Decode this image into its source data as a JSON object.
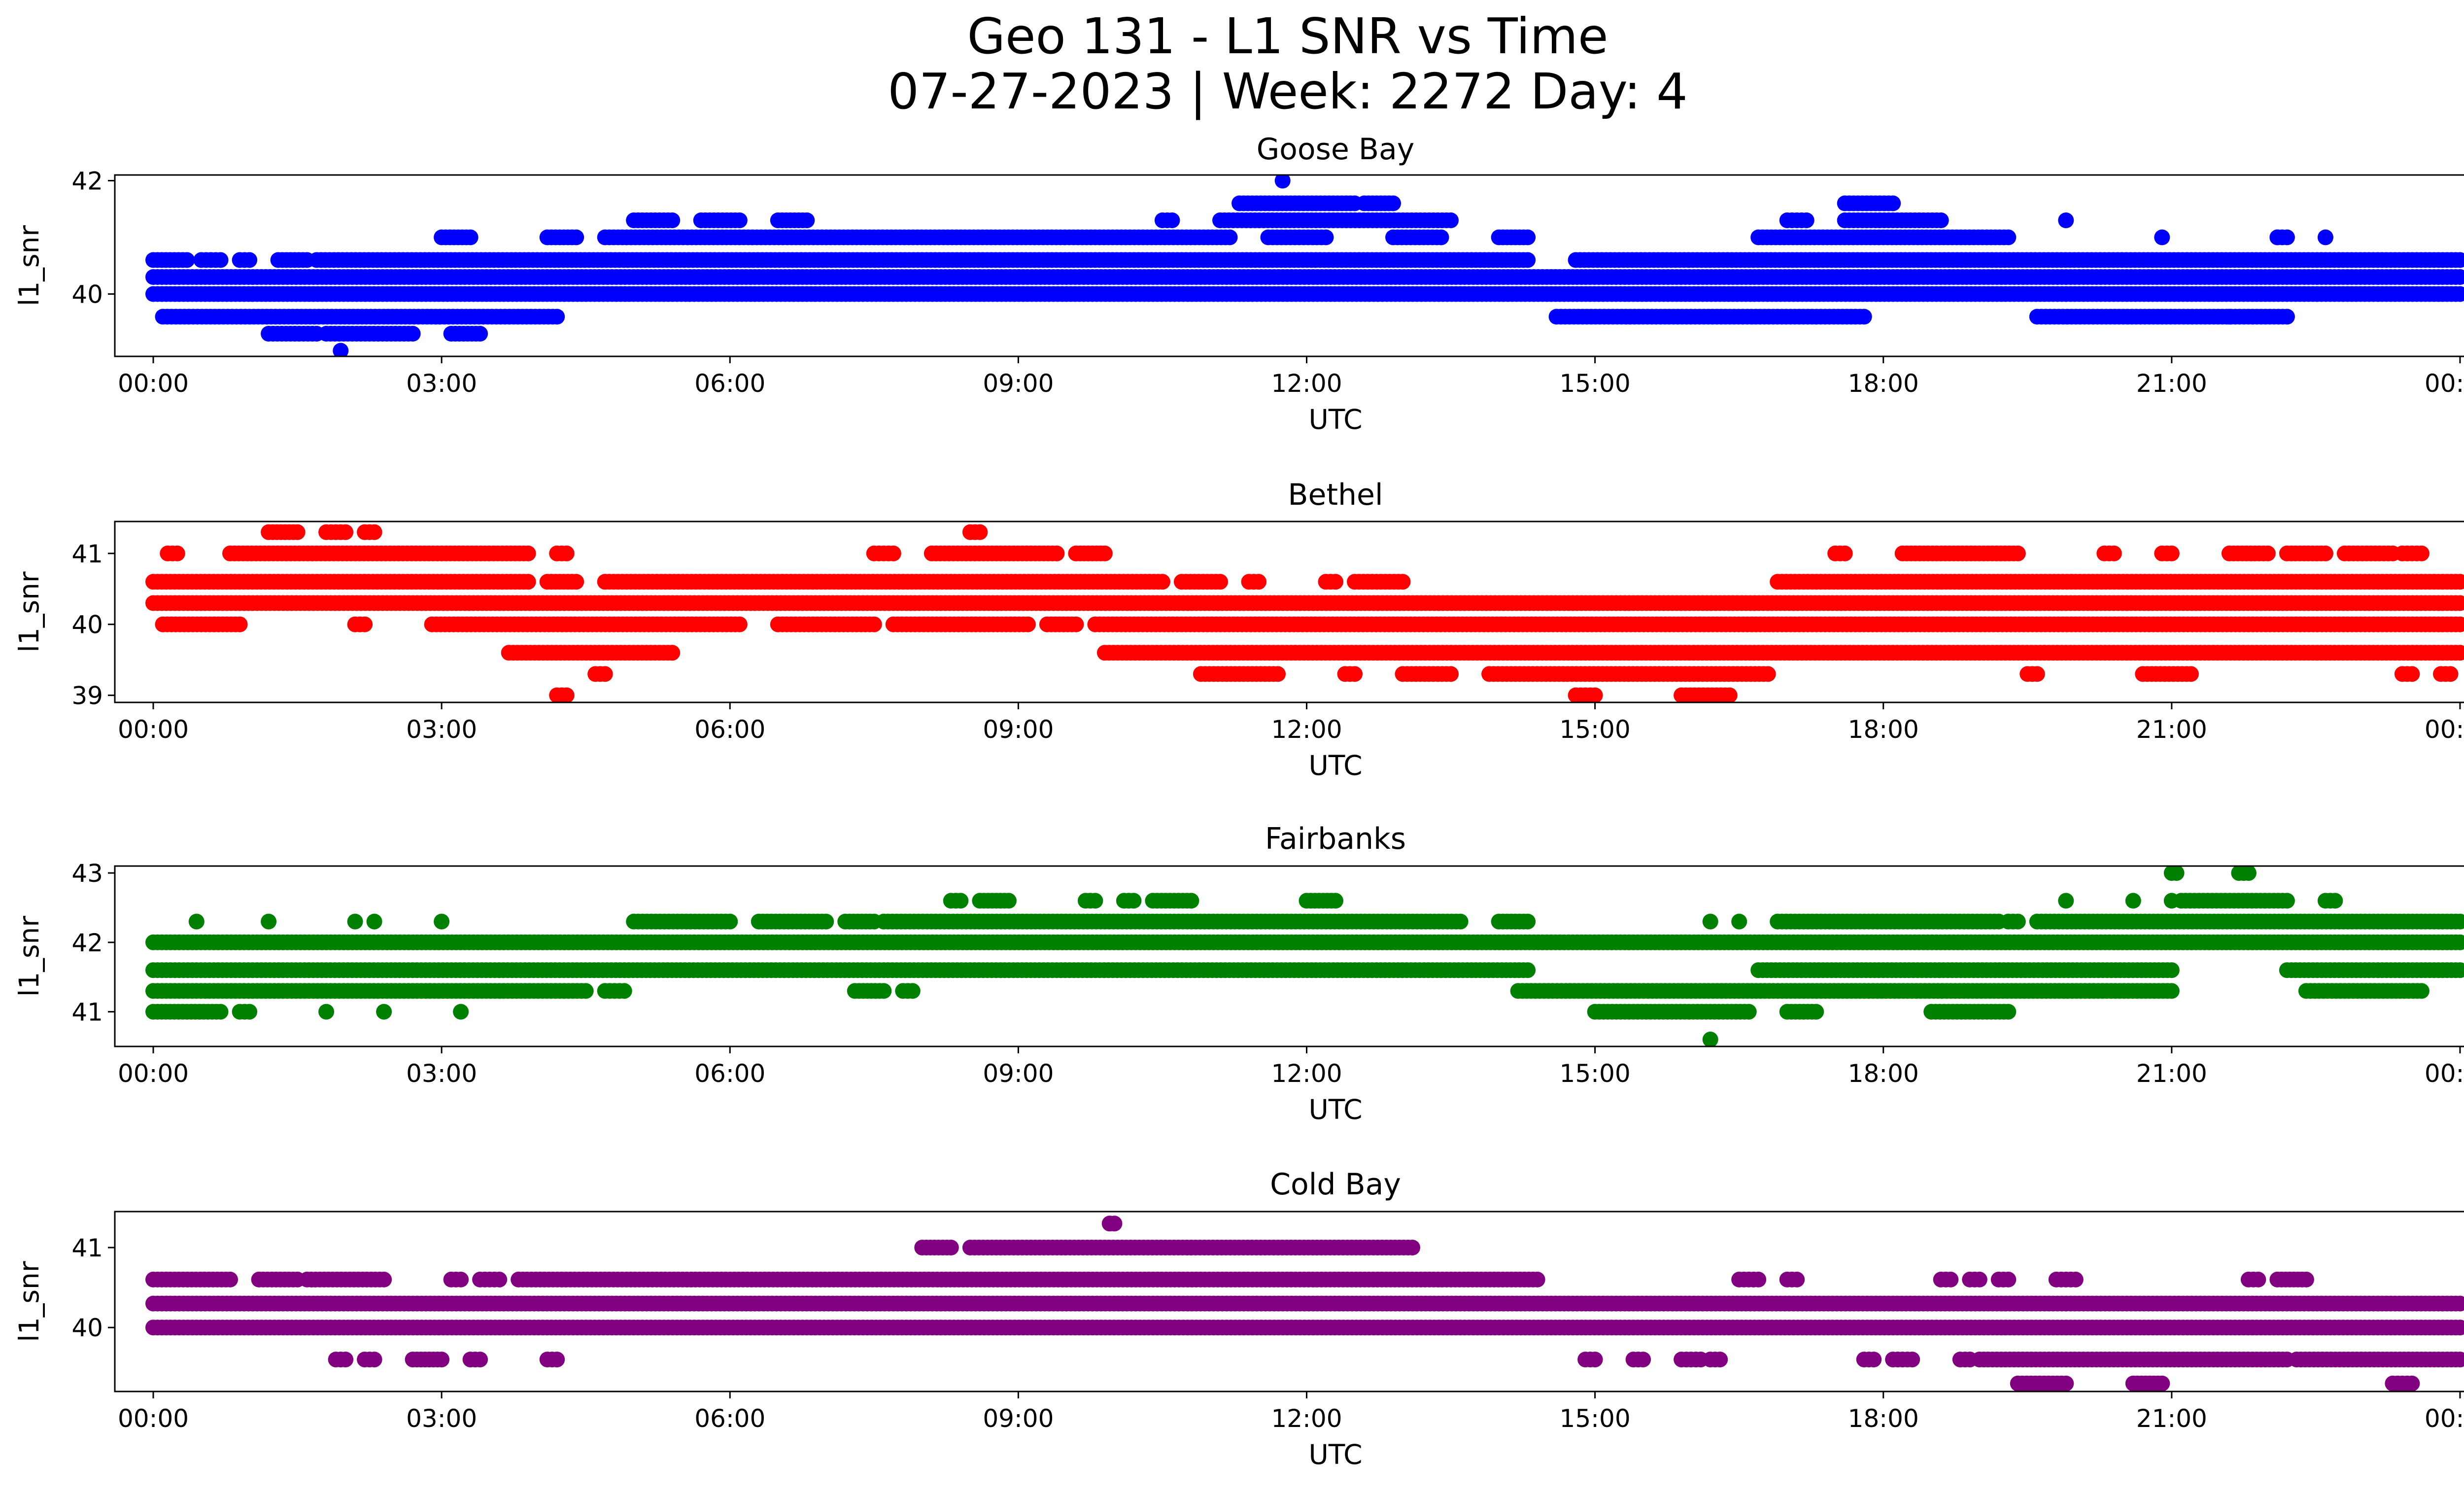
{
  "figure": {
    "title_line1": "Geo 131 - L1 SNR vs Time",
    "title_line2": "07-27-2023 | Week: 2272 Day: 4"
  },
  "chart_data": [
    {
      "type": "scatter",
      "title": "Goose Bay",
      "xlabel": "UTC",
      "ylabel": "l1_snr",
      "color": "#0000ff",
      "x_unit": "hours UTC",
      "xlim": [
        -0.4,
        25.0
      ],
      "ylim": [
        38.9,
        42.1
      ],
      "xticks": [
        "00:00",
        "03:00",
        "06:00",
        "09:00",
        "12:00",
        "15:00",
        "18:00",
        "21:00",
        "00:00"
      ],
      "yticks": [
        40,
        42
      ],
      "levels": [
        {
          "y": 40.0,
          "segments": [
            [
              0.0,
              24.0
            ]
          ]
        },
        {
          "y": 40.3,
          "segments": [
            [
              0.0,
              24.0
            ]
          ]
        },
        {
          "y": 39.6,
          "segments": [
            [
              0.1,
              4.2
            ],
            [
              14.6,
              17.8
            ],
            [
              19.6,
              22.2
            ]
          ]
        },
        {
          "y": 40.6,
          "segments": [
            [
              0.0,
              0.35
            ],
            [
              0.5,
              0.7
            ],
            [
              0.9,
              1.0
            ],
            [
              1.3,
              1.6
            ],
            [
              1.7,
              14.3
            ],
            [
              14.8,
              24.0
            ]
          ]
        },
        {
          "y": 41.0,
          "segments": [
            [
              3.0,
              3.3
            ],
            [
              4.1,
              4.4
            ],
            [
              4.7,
              11.2
            ],
            [
              11.6,
              12.2
            ],
            [
              12.9,
              13.4
            ],
            [
              14.0,
              14.3
            ],
            [
              16.7,
              19.3
            ],
            [
              22.1,
              22.2
            ]
          ]
        },
        {
          "y": 41.3,
          "segments": [
            [
              5.0,
              5.4
            ],
            [
              5.7,
              6.1
            ],
            [
              6.5,
              6.8
            ],
            [
              10.5,
              10.6
            ],
            [
              11.1,
              13.5
            ],
            [
              17.0,
              17.2
            ],
            [
              17.6,
              18.6
            ]
          ]
        },
        {
          "y": 41.6,
          "segments": [
            [
              11.3,
              12.5
            ],
            [
              12.6,
              12.9
            ],
            [
              17.6,
              18.1
            ]
          ]
        },
        {
          "y": 39.3,
          "segments": [
            [
              1.2,
              1.7
            ],
            [
              1.8,
              2.7
            ],
            [
              3.1,
              3.4
            ]
          ]
        }
      ],
      "points": [
        [
          11.75,
          42.0
        ],
        [
          1.95,
          39.0
        ],
        [
          19.9,
          41.3
        ],
        [
          20.9,
          41.0
        ],
        [
          22.1,
          41.0
        ],
        [
          21.6,
          39.6
        ],
        [
          22.6,
          41.0
        ]
      ]
    },
    {
      "type": "scatter",
      "title": "Bethel",
      "xlabel": "UTC",
      "ylabel": "l1_snr",
      "color": "#ff0000",
      "x_unit": "hours UTC",
      "xlim": [
        -0.4,
        25.0
      ],
      "ylim": [
        38.9,
        41.45
      ],
      "xticks": [
        "00:00",
        "03:00",
        "06:00",
        "09:00",
        "12:00",
        "15:00",
        "18:00",
        "21:00",
        "00:00"
      ],
      "yticks": [
        39,
        40,
        41
      ],
      "levels": [
        {
          "y": 40.3,
          "segments": [
            [
              0.0,
              24.0
            ]
          ]
        },
        {
          "y": 40.6,
          "segments": [
            [
              0.0,
              3.9
            ],
            [
              4.1,
              4.4
            ],
            [
              4.7,
              10.5
            ],
            [
              10.7,
              11.1
            ],
            [
              11.4,
              11.5
            ],
            [
              12.2,
              12.3
            ],
            [
              12.5,
              13.0
            ],
            [
              16.9,
              24.0
            ]
          ]
        },
        {
          "y": 40.0,
          "segments": [
            [
              0.1,
              0.9
            ],
            [
              2.1,
              2.2
            ],
            [
              2.9,
              6.1
            ],
            [
              6.5,
              7.5
            ],
            [
              7.7,
              9.1
            ],
            [
              9.3,
              9.6
            ],
            [
              9.8,
              24.0
            ]
          ]
        },
        {
          "y": 41.0,
          "segments": [
            [
              0.15,
              0.25
            ],
            [
              0.8,
              3.9
            ],
            [
              4.2,
              4.3
            ],
            [
              7.5,
              7.7
            ],
            [
              8.1,
              9.4
            ],
            [
              9.6,
              9.9
            ],
            [
              17.5,
              17.6
            ],
            [
              18.2,
              19.4
            ],
            [
              20.3,
              20.4
            ],
            [
              20.9,
              21.0
            ],
            [
              21.6,
              22.0
            ],
            [
              22.2,
              22.6
            ],
            [
              22.8,
              23.3
            ],
            [
              23.4,
              23.6
            ]
          ]
        },
        {
          "y": 41.3,
          "segments": [
            [
              1.2,
              1.5
            ],
            [
              1.8,
              2.0
            ],
            [
              2.2,
              2.3
            ],
            [
              8.5,
              8.6
            ]
          ]
        },
        {
          "y": 39.6,
          "segments": [
            [
              3.7,
              5.4
            ],
            [
              9.9,
              24.0
            ]
          ]
        },
        {
          "y": 39.3,
          "segments": [
            [
              4.6,
              4.7
            ],
            [
              10.9,
              11.7
            ],
            [
              12.4,
              12.5
            ],
            [
              13.0,
              13.5
            ],
            [
              13.9,
              16.8
            ],
            [
              19.5,
              19.6
            ],
            [
              20.7,
              21.2
            ],
            [
              23.4,
              23.5
            ],
            [
              23.8,
              23.9
            ]
          ]
        },
        {
          "y": 39.0,
          "segments": [
            [
              4.2,
              4.3
            ],
            [
              14.8,
              15.0
            ],
            [
              15.9,
              16.4
            ]
          ]
        }
      ],
      "points": []
    },
    {
      "type": "scatter",
      "title": "Fairbanks",
      "xlabel": "UTC",
      "ylabel": "l1_snr",
      "color": "#008000",
      "x_unit": "hours UTC",
      "xlim": [
        -0.4,
        25.0
      ],
      "ylim": [
        40.5,
        43.1
      ],
      "xticks": [
        "00:00",
        "03:00",
        "06:00",
        "09:00",
        "12:00",
        "15:00",
        "18:00",
        "21:00",
        "00:00"
      ],
      "yticks": [
        41,
        42,
        43
      ],
      "levels": [
        {
          "y": 41.6,
          "segments": [
            [
              0.0,
              14.3
            ],
            [
              16.7,
              21.0
            ],
            [
              22.2,
              24.0
            ]
          ]
        },
        {
          "y": 42.0,
          "segments": [
            [
              0.0,
              24.0
            ]
          ]
        },
        {
          "y": 41.3,
          "segments": [
            [
              0.0,
              4.5
            ],
            [
              4.7,
              4.9
            ],
            [
              7.3,
              7.6
            ],
            [
              7.8,
              7.9
            ],
            [
              14.2,
              21.0
            ],
            [
              22.4,
              23.6
            ]
          ]
        },
        {
          "y": 42.3,
          "segments": [
            [
              5.0,
              6.0
            ],
            [
              6.3,
              7.0
            ],
            [
              7.2,
              7.5
            ],
            [
              7.6,
              13.6
            ],
            [
              14.0,
              14.3
            ],
            [
              16.9,
              19.2
            ],
            [
              19.3,
              19.4
            ],
            [
              19.6,
              24.0
            ]
          ]
        },
        {
          "y": 41.0,
          "segments": [
            [
              0.0,
              0.7
            ],
            [
              0.9,
              1.0
            ],
            [
              15.0,
              16.6
            ],
            [
              17.0,
              17.3
            ],
            [
              18.5,
              19.3
            ]
          ]
        },
        {
          "y": 42.6,
          "segments": [
            [
              8.3,
              8.4
            ],
            [
              8.6,
              8.9
            ],
            [
              9.7,
              9.8
            ],
            [
              10.1,
              10.2
            ],
            [
              10.4,
              10.8
            ],
            [
              12.0,
              12.3
            ],
            [
              21.1,
              22.2
            ],
            [
              22.6,
              22.7
            ]
          ]
        },
        {
          "y": 43.0,
          "segments": [
            [
              21.0,
              21.05
            ],
            [
              21.7,
              21.8
            ]
          ]
        }
      ],
      "points": [
        [
          0.45,
          42.3
        ],
        [
          1.2,
          42.3
        ],
        [
          2.1,
          42.3
        ],
        [
          2.3,
          42.3
        ],
        [
          3.0,
          42.3
        ],
        [
          16.2,
          42.3
        ],
        [
          16.5,
          42.3
        ],
        [
          1.8,
          41.0
        ],
        [
          2.4,
          41.0
        ],
        [
          3.2,
          41.0
        ],
        [
          16.2,
          40.6
        ],
        [
          19.9,
          42.6
        ],
        [
          20.6,
          42.6
        ],
        [
          21.0,
          42.6
        ]
      ]
    },
    {
      "type": "scatter",
      "title": "Cold Bay",
      "xlabel": "UTC",
      "ylabel": "l1_snr",
      "color": "#800080",
      "x_unit": "hours UTC",
      "xlim": [
        -0.4,
        25.0
      ],
      "ylim": [
        39.2,
        41.45
      ],
      "xticks": [
        "00:00",
        "03:00",
        "06:00",
        "09:00",
        "12:00",
        "15:00",
        "18:00",
        "21:00",
        "00:00"
      ],
      "yticks": [
        40,
        41
      ],
      "levels": [
        {
          "y": 40.0,
          "segments": [
            [
              0.0,
              24.0
            ]
          ]
        },
        {
          "y": 40.3,
          "segments": [
            [
              0.0,
              24.0
            ]
          ]
        },
        {
          "y": 40.6,
          "segments": [
            [
              0.0,
              0.8
            ],
            [
              1.1,
              1.5
            ],
            [
              1.6,
              2.4
            ],
            [
              3.1,
              3.2
            ],
            [
              3.4,
              3.6
            ],
            [
              3.8,
              14.4
            ],
            [
              16.5,
              16.7
            ],
            [
              17.0,
              17.1
            ],
            [
              18.6,
              18.7
            ],
            [
              18.9,
              19.0
            ],
            [
              19.2,
              19.3
            ],
            [
              19.8,
              20.0
            ],
            [
              21.8,
              21.9
            ],
            [
              22.1,
              22.4
            ]
          ]
        },
        {
          "y": 41.0,
          "segments": [
            [
              8.0,
              8.3
            ],
            [
              8.5,
              13.1
            ]
          ]
        },
        {
          "y": 39.6,
          "segments": [
            [
              1.9,
              2.0
            ],
            [
              2.2,
              2.3
            ],
            [
              2.7,
              3.0
            ],
            [
              3.3,
              3.4
            ],
            [
              4.1,
              4.2
            ],
            [
              14.9,
              15.0
            ],
            [
              15.4,
              15.5
            ],
            [
              15.9,
              16.1
            ],
            [
              16.2,
              16.3
            ],
            [
              17.8,
              17.9
            ],
            [
              18.1,
              18.3
            ],
            [
              18.8,
              18.9
            ],
            [
              19.0,
              22.2
            ],
            [
              22.3,
              24.0
            ]
          ]
        },
        {
          "y": 39.3,
          "segments": [
            [
              19.4,
              19.9
            ],
            [
              20.6,
              20.9
            ],
            [
              23.3,
              23.5
            ]
          ]
        },
        {
          "y": 41.3,
          "segments": [
            [
              9.95,
              10.0
            ]
          ]
        }
      ],
      "points": []
    }
  ]
}
